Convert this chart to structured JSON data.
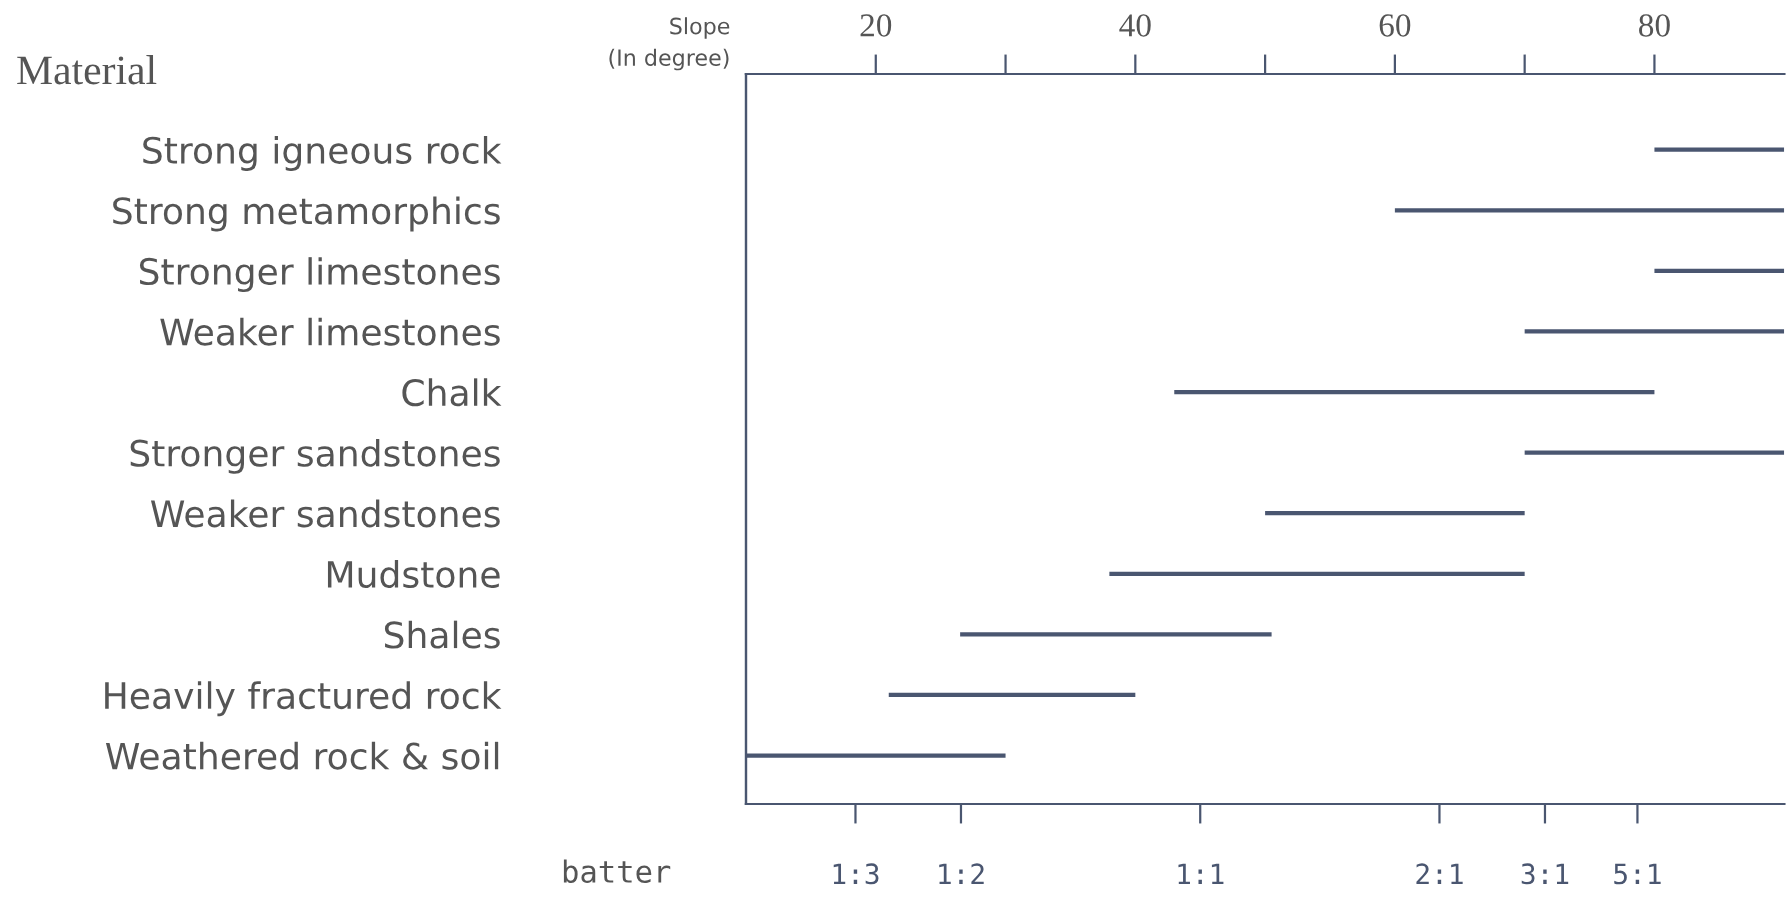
{
  "chart_data": {
    "type": "bar",
    "orientation": "horizontal",
    "ylabel": "Material",
    "xlabel": "Slope\n(In degree)",
    "x2label": "batter",
    "categories": [
      "Strong igneous rock",
      "Strong metamorphics",
      "Stronger limestones",
      "Weaker limestones",
      "Chalk",
      "Stronger sandstones",
      "Weaker sandstones",
      "Mudstone",
      "Shales",
      "Heavily fractured rock",
      "Weathered rock & soil"
    ],
    "base": [
      80,
      60,
      80,
      70,
      43,
      70,
      50,
      38,
      26.5,
      21,
      10
    ],
    "values": [
      10,
      30,
      10,
      20,
      37,
      20,
      20,
      32,
      24,
      19,
      20
    ],
    "color": "#4a5670",
    "xlim": [
      10,
      90
    ],
    "xticks": [
      20,
      {
        "value": 30,
        "label": null
      },
      40,
      {
        "value": 50,
        "label": null
      },
      60,
      {
        "value": 70,
        "label": null
      },
      80
    ],
    "annotations": [
      "1:3",
      "1:2",
      "1:1",
      "2:1",
      "3:1",
      "5:1"
    ],
    "grid": false,
    "legend": false
  }
}
